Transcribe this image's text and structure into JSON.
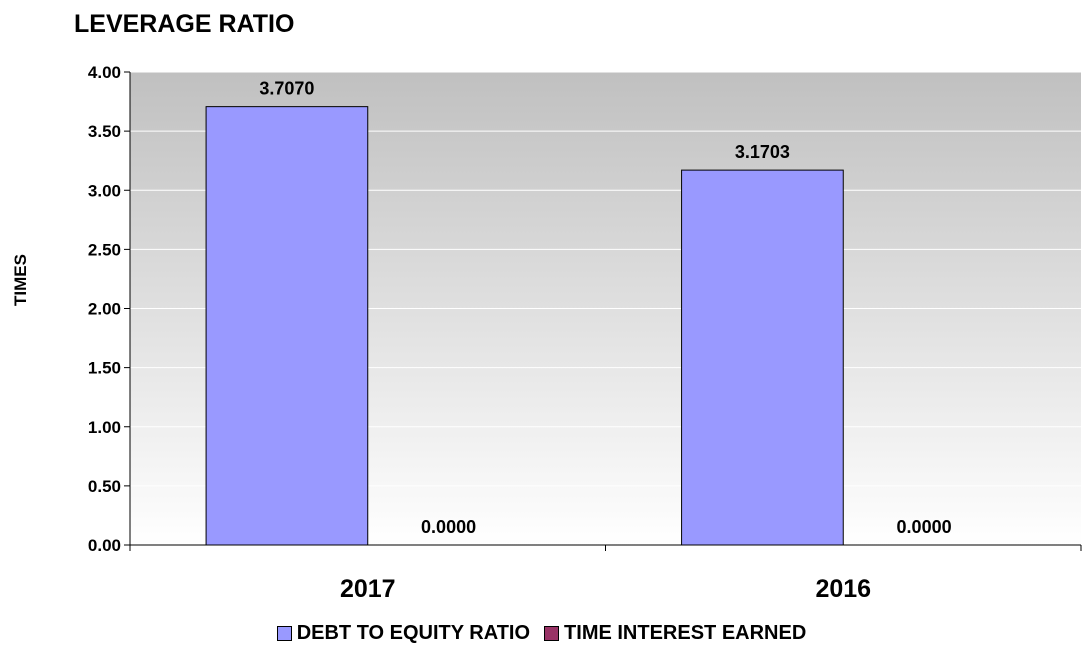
{
  "chart_data": {
    "type": "bar",
    "title": "LEVERAGE RATIO",
    "xlabel": "",
    "ylabel": "TIMES",
    "categories": [
      "2017",
      "2016"
    ],
    "ylim": [
      0,
      4
    ],
    "yticks": [
      "0.00",
      "0.50",
      "1.00",
      "1.50",
      "2.00",
      "2.50",
      "3.00",
      "3.50",
      "4.00"
    ],
    "series": [
      {
        "name": "DEBT TO EQUITY RATIO",
        "values": [
          3.707,
          3.1703
        ],
        "labels": [
          "3.7070",
          "3.1703"
        ],
        "color": "#9999ff"
      },
      {
        "name": "TIME INTEREST EARNED",
        "values": [
          0,
          0
        ],
        "labels": [
          "0.0000",
          "0.0000"
        ],
        "color": "#993366"
      }
    ],
    "grid": true,
    "legend": "bottom",
    "plot_background": "gradient-gray"
  }
}
